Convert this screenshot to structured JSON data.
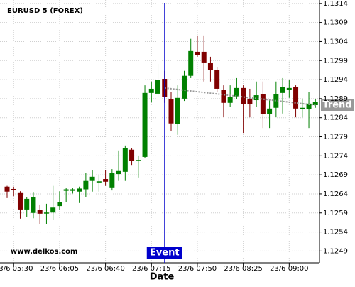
{
  "chart_data": {
    "type": "candlestick",
    "title": "EURUSD 5 (FOREX)",
    "x_label": "Date",
    "watermark": "www.delkos.com",
    "categories": [
      null,
      "23/6 05:30",
      null,
      null,
      null,
      null,
      null,
      null,
      "23/6 06:05",
      null,
      null,
      null,
      null,
      null,
      null,
      "23/6 06:40",
      null,
      null,
      null,
      null,
      null,
      null,
      "23/6 07:15",
      null,
      null,
      null,
      null,
      null,
      null,
      "23/6 07:50",
      null,
      null,
      null,
      null,
      null,
      null,
      "23/6 08:25",
      null,
      null,
      null,
      null,
      null,
      null,
      "23/6 09:00",
      null,
      null,
      null,
      null
    ],
    "open": [
      1.12659,
      1.12653,
      1.12644,
      1.12599,
      1.1259,
      1.12597,
      1.1259,
      1.12591,
      1.12608,
      1.12648,
      1.12648,
      1.12646,
      1.12652,
      1.12674,
      1.1267,
      1.12679,
      1.12657,
      1.12692,
      1.12698,
      1.12756,
      1.12727,
      1.12737,
      1.12905,
      1.12903,
      1.12942,
      1.12888,
      1.12823,
      1.1289,
      1.1295,
      1.13013,
      1.13013,
      1.12983,
      1.12966,
      1.12914,
      1.12879,
      1.12896,
      1.12918,
      1.1289,
      1.12886,
      1.12901,
      1.12849,
      1.12866,
      1.12905,
      1.12914,
      1.1292,
      1.12862,
      1.12862,
      1.12873
    ],
    "high": [
      1.12661,
      1.12659,
      1.12647,
      1.12631,
      1.12645,
      1.12612,
      1.12614,
      1.12661,
      1.12647,
      1.12655,
      1.12655,
      1.12659,
      1.12694,
      1.12702,
      1.1269,
      1.12702,
      1.12705,
      1.12754,
      1.12767,
      1.12761,
      1.12739,
      1.12925,
      1.12935,
      1.12981,
      1.12963,
      1.12907,
      1.12925,
      1.12963,
      1.13047,
      1.13056,
      1.13056,
      1.13,
      1.12972,
      1.12925,
      1.12925,
      1.12944,
      1.12925,
      1.12916,
      1.12935,
      1.12935,
      1.12888,
      1.12935,
      1.12944,
      1.1294,
      1.12925,
      1.12888,
      1.12907,
      1.12888
    ],
    "low": [
      1.12629,
      1.12634,
      1.12575,
      1.1258,
      1.12576,
      1.1256,
      1.1256,
      1.12571,
      1.12599,
      1.12618,
      1.12641,
      1.12616,
      1.12631,
      1.12646,
      1.12646,
      1.12661,
      1.12649,
      1.12674,
      1.12674,
      1.12716,
      1.12683,
      1.12735,
      1.1288,
      1.12894,
      1.12879,
      1.12804,
      1.12795,
      1.12884,
      1.12944,
      1.13,
      1.12935,
      1.12935,
      1.12907,
      1.12841,
      1.12869,
      1.12888,
      1.128,
      1.12841,
      1.12869,
      1.12813,
      1.12813,
      1.12841,
      1.12851,
      1.12892,
      1.12841,
      1.12841,
      1.12813,
      1.12866
    ],
    "close": [
      1.12646,
      1.12651,
      1.12599,
      1.12627,
      1.12631,
      1.12588,
      1.12591,
      1.12604,
      1.12618,
      1.12652,
      1.12652,
      1.12654,
      1.12674,
      1.12685,
      1.12673,
      1.12672,
      1.12694,
      1.127,
      1.12761,
      1.12726,
      1.12729,
      1.12905,
      1.12916,
      1.12939,
      1.12894,
      1.12825,
      1.12892,
      1.1295,
      1.13015,
      1.13004,
      1.12985,
      1.12966,
      1.12916,
      1.12879,
      1.12894,
      1.12918,
      1.12875,
      1.12875,
      1.12899,
      1.12849,
      1.12864,
      1.12901,
      1.1292,
      1.12918,
      1.12864,
      1.12866,
      1.12877,
      1.12882
    ],
    "up_color": "#008000",
    "down_color": "#800000",
    "ylim": [
      1.12459,
      1.13149
    ],
    "yticks": [
      1.1249,
      1.1254,
      1.1259,
      1.1264,
      1.1269,
      1.1274,
      1.1279,
      1.1284,
      1.1289,
      1.1294,
      1.1299,
      1.1304,
      1.1309,
      1.1314
    ],
    "grid": true,
    "event": {
      "label": "Event",
      "index": 24,
      "color": "#0000cc"
    },
    "trend": {
      "label": "Trend",
      "from": [
        24,
        1.12918
      ],
      "to": [
        47,
        1.12873
      ],
      "color": "#999999"
    }
  }
}
